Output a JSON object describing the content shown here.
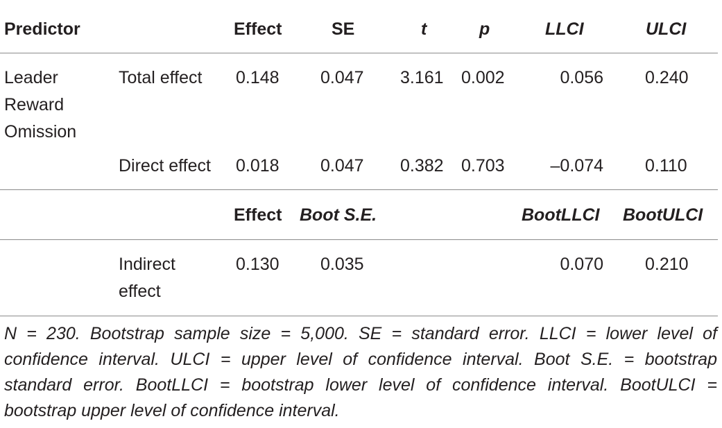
{
  "table": {
    "header": {
      "predictor": "Predictor",
      "effect": "Effect",
      "se": "SE",
      "t": "t",
      "p": "p",
      "llci": "LLCI",
      "ulci": "ULCI"
    },
    "predictor_label": "Leader Reward Omission",
    "rows": [
      {
        "label": "Total effect",
        "effect": "0.148",
        "se": "0.047",
        "t": "3.161",
        "p": "0.002",
        "llci": "0.056",
        "ulci": "0.240"
      },
      {
        "label": "Direct effect",
        "effect": "0.018",
        "se": "0.047",
        "t": "0.382",
        "p": "0.703",
        "llci": "–0.074",
        "ulci": "0.110"
      }
    ],
    "subheader": {
      "effect": "Effect",
      "boot_se": "Boot S.E.",
      "boot_llci": "BootLLCI",
      "boot_ulci": "BootULCI"
    },
    "indirect_row": {
      "label": "Indirect effect",
      "effect": "0.130",
      "boot_se": "0.035",
      "boot_llci": "0.070",
      "boot_ulci": "0.210"
    },
    "note": "N = 230. Bootstrap sample size = 5,000. SE = standard error. LLCI = lower level of confidence interval. ULCI = upper level of confidence interval. Boot S.E. = bootstrap standard error. BootLLCI = bootstrap lower level of confidence interval. BootULCI = bootstrap upper level of confidence interval."
  }
}
